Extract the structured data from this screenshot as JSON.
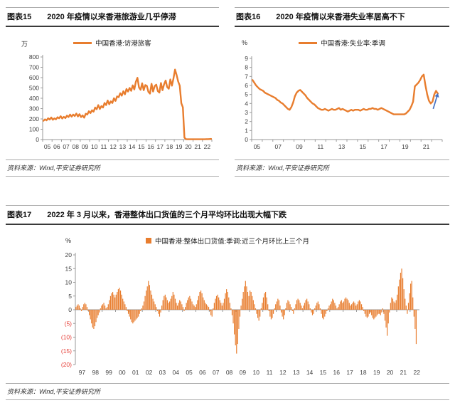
{
  "colors": {
    "series_orange": "#E87D2E",
    "negative_red": "#E6413A",
    "arrow_blue": "#4472C4",
    "axis_gray": "#9A9A9A",
    "tick_text": "#404040"
  },
  "figures": [
    {
      "code": "图表15",
      "title": "2020 年疫情以来香港旅游业几乎停滞",
      "source": "资料来源：Wind,平安证券研究所"
    },
    {
      "code": "图表16",
      "title": "2020 年疫情以来香港失业率居高不下",
      "source": "资料来源：Wind,平安证券研究所"
    },
    {
      "code": "图表17",
      "title": "2022 年 3 月以来，香港整体出口货值的三个月平均环比出现大幅下跌",
      "source": "资料来源：Wind,平安证券研究所"
    }
  ],
  "chart_data": [
    {
      "type": "line",
      "title": "中国香港访港旅客（月度）",
      "unit": "万",
      "legend": "中国香港:访港旅客",
      "color": "#E87D2E",
      "xlabel": "",
      "ylabel": "万",
      "xlim": [
        2005,
        2023
      ],
      "ylim": [
        0,
        800
      ],
      "grid": false,
      "legend_position": "top-center",
      "x_start": 2005,
      "points_per_year": 6,
      "yticks": [
        {
          "v": 0,
          "label": "0"
        },
        {
          "v": 100,
          "label": "100"
        },
        {
          "v": 200,
          "label": "200"
        },
        {
          "v": 300,
          "label": "300"
        },
        {
          "v": 400,
          "label": "400"
        },
        {
          "v": 500,
          "label": "500"
        },
        {
          "v": 600,
          "label": "600"
        },
        {
          "v": 700,
          "label": "700"
        },
        {
          "v": 800,
          "label": "800"
        }
      ],
      "xticks": {
        "start": 2005,
        "step": 1,
        "labels": [
          "05",
          "06",
          "07",
          "08",
          "09",
          "10",
          "11",
          "12",
          "13",
          "14",
          "15",
          "16",
          "17",
          "18",
          "19",
          "20",
          "21",
          "22"
        ]
      },
      "values": [
        182,
        196,
        186,
        206,
        194,
        214,
        192,
        205,
        196,
        216,
        206,
        226,
        204,
        220,
        208,
        232,
        218,
        242,
        222,
        242,
        228,
        252,
        224,
        246,
        218,
        234,
        212,
        250,
        242,
        274,
        256,
        284,
        270,
        310,
        294,
        334,
        296,
        324,
        310,
        354,
        334,
        378,
        342,
        370,
        354,
        400,
        374,
        418,
        410,
        448,
        425,
        468,
        438,
        490,
        465,
        500,
        472,
        525,
        485,
        560,
        598,
        505,
        482,
        545,
        478,
        528,
        520,
        462,
        445,
        540,
        465,
        518,
        532,
        470,
        455,
        548,
        478,
        535,
        572,
        508,
        492,
        582,
        522,
        592,
        678,
        625,
        562,
        522,
        352,
        312,
        18,
        4,
        3,
        3,
        3,
        3,
        3,
        3,
        3,
        3,
        3,
        3,
        3,
        3,
        4,
        4,
        5,
        6
      ]
    },
    {
      "type": "line",
      "title": "中国香港失业率（季调，%）",
      "unit": "%",
      "legend": "中国香港:失业率:季调",
      "color": "#E87D2E",
      "xlabel": "",
      "ylabel": "%",
      "xlim": [
        2005,
        2023
      ],
      "ylim": [
        0,
        9
      ],
      "grid": false,
      "legend_position": "top-center",
      "x_start": 2005,
      "points_per_year": 6,
      "yticks": [
        {
          "v": 0,
          "label": "0"
        },
        {
          "v": 1,
          "label": "1"
        },
        {
          "v": 2,
          "label": "2"
        },
        {
          "v": 3,
          "label": "3"
        },
        {
          "v": 4,
          "label": "4"
        },
        {
          "v": 5,
          "label": "5"
        },
        {
          "v": 6,
          "label": "6"
        },
        {
          "v": 7,
          "label": "7"
        },
        {
          "v": 8,
          "label": "8"
        },
        {
          "v": 9,
          "label": "9"
        }
      ],
      "xticks": {
        "start": 2005,
        "step": 2,
        "labels": [
          "05",
          "07",
          "09",
          "11",
          "13",
          "15",
          "17",
          "19",
          "21"
        ]
      },
      "annotation_arrow": {
        "x1": 2022.15,
        "y1": 3.4,
        "x2": 2022.6,
        "y2": 5.15,
        "color": "#4472C4"
      },
      "values": [
        6.6,
        6.3,
        6.0,
        5.8,
        5.6,
        5.5,
        5.4,
        5.2,
        5.1,
        5.0,
        4.9,
        4.8,
        4.7,
        4.6,
        4.4,
        4.3,
        4.1,
        4.0,
        3.8,
        3.6,
        3.4,
        3.3,
        3.6,
        4.1,
        4.8,
        5.2,
        5.4,
        5.5,
        5.3,
        5.1,
        4.9,
        4.6,
        4.4,
        4.2,
        4.0,
        3.9,
        3.7,
        3.5,
        3.4,
        3.3,
        3.3,
        3.4,
        3.3,
        3.2,
        3.3,
        3.4,
        3.3,
        3.3,
        3.4,
        3.5,
        3.3,
        3.4,
        3.3,
        3.2,
        3.1,
        3.2,
        3.3,
        3.2,
        3.3,
        3.3,
        3.3,
        3.2,
        3.3,
        3.4,
        3.3,
        3.3,
        3.4,
        3.4,
        3.5,
        3.4,
        3.4,
        3.3,
        3.4,
        3.5,
        3.4,
        3.3,
        3.2,
        3.1,
        3.0,
        2.9,
        2.8,
        2.8,
        2.8,
        2.8,
        2.8,
        2.8,
        2.8,
        2.9,
        3.1,
        3.3,
        3.7,
        4.2,
        5.9,
        6.1,
        6.3,
        6.6,
        7.0,
        7.2,
        6.0,
        5.0,
        4.3,
        4.0,
        4.2,
        5.0,
        5.4,
        5.1
      ]
    },
    {
      "type": "bar",
      "title": "中国香港整体出口货值（季调，近三个月环比上三个月，%）",
      "unit": "%",
      "legend": "中国香港:整体出口货值:季调:近三个月环比上三个月",
      "color": "#E87D2E",
      "xlabel": "",
      "ylabel": "%",
      "xlim": [
        1997,
        2022.7
      ],
      "ylim": [
        -20,
        20
      ],
      "grid": false,
      "legend_position": "top-center",
      "x_start": 1997,
      "points_per_year": 12,
      "yticks": [
        {
          "v": 20,
          "label": "20"
        },
        {
          "v": 15,
          "label": "15"
        },
        {
          "v": 10,
          "label": "10"
        },
        {
          "v": 5,
          "label": "5"
        },
        {
          "v": 0,
          "label": "0"
        },
        {
          "v": -5,
          "label": "(5)",
          "neg": true
        },
        {
          "v": -10,
          "label": "(10)",
          "neg": true
        },
        {
          "v": -15,
          "label": "(15)",
          "neg": true
        },
        {
          "v": -20,
          "label": "(20)",
          "neg": true
        }
      ],
      "xticks": {
        "start": 1997,
        "step": 1,
        "labels": [
          "97",
          "98",
          "99",
          "00",
          "01",
          "02",
          "03",
          "04",
          "05",
          "06",
          "07",
          "08",
          "09",
          "10",
          "11",
          "12",
          "13",
          "14",
          "15",
          "16",
          "17",
          "18",
          "19",
          "20",
          "21",
          "22"
        ]
      },
      "values": [
        1.0,
        1.5,
        2.0,
        1.5,
        0.5,
        -0.5,
        1.0,
        2.0,
        2.5,
        2.0,
        1.0,
        -0.5,
        -2.0,
        -3.5,
        -5.0,
        -6.5,
        -7.0,
        -6.0,
        -4.5,
        -3.0,
        -2.0,
        -1.0,
        0.5,
        1.5,
        2.0,
        2.5,
        1.5,
        0.5,
        1.0,
        2.0,
        3.5,
        5.0,
        6.0,
        6.5,
        5.5,
        4.5,
        5.5,
        6.5,
        7.5,
        8.0,
        7.0,
        5.5,
        4.0,
        3.0,
        2.0,
        1.0,
        -0.5,
        -1.5,
        -2.5,
        -3.5,
        -4.5,
        -5.0,
        -4.5,
        -4.0,
        -3.5,
        -3.0,
        -2.5,
        -1.5,
        -0.5,
        0.5,
        1.5,
        3.0,
        5.0,
        7.0,
        8.5,
        10.5,
        9.0,
        7.0,
        5.5,
        4.0,
        3.0,
        2.0,
        1.0,
        -0.5,
        -1.5,
        -2.5,
        -1.0,
        1.5,
        3.5,
        5.0,
        5.5,
        4.5,
        3.5,
        2.5,
        3.0,
        4.0,
        5.0,
        6.5,
        5.5,
        4.0,
        2.5,
        1.5,
        2.5,
        3.5,
        3.0,
        2.0,
        1.0,
        -0.5,
        1.0,
        2.5,
        3.5,
        4.5,
        5.0,
        4.0,
        3.0,
        2.0,
        1.5,
        1.0,
        2.0,
        3.5,
        5.0,
        6.5,
        7.0,
        6.0,
        4.5,
        3.5,
        2.5,
        2.0,
        1.5,
        1.0,
        -0.5,
        -2.0,
        -2.5,
        0.5,
        2.5,
        4.0,
        5.0,
        5.5,
        4.5,
        3.5,
        2.5,
        1.5,
        2.5,
        4.0,
        6.0,
        7.5,
        6.5,
        4.5,
        2.5,
        0.5,
        -2.0,
        -5.0,
        -9.0,
        -13.0,
        -16.0,
        -12.5,
        -7.0,
        -2.5,
        1.5,
        4.0,
        6.5,
        8.5,
        10.5,
        8.5,
        6.5,
        5.0,
        7.0,
        6.5,
        5.0,
        3.5,
        2.0,
        0.5,
        -1.5,
        -3.0,
        -4.0,
        -2.5,
        0.5,
        2.5,
        4.5,
        6.0,
        6.5,
        4.5,
        2.0,
        -0.5,
        -2.5,
        -3.5,
        -3.0,
        -1.5,
        0.5,
        2.0,
        3.0,
        4.0,
        3.5,
        1.5,
        -1.0,
        -2.5,
        -3.5,
        -2.0,
        0.5,
        2.5,
        3.5,
        3.0,
        2.0,
        1.0,
        -0.5,
        -1.5,
        0.5,
        2.0,
        3.5,
        4.0,
        3.5,
        2.5,
        1.5,
        0.5,
        1.5,
        2.5,
        3.5,
        4.0,
        3.0,
        2.0,
        0.5,
        -1.0,
        -2.0,
        -1.5,
        0.5,
        1.5,
        2.5,
        3.0,
        2.0,
        0.5,
        -1.5,
        -3.0,
        -3.5,
        -2.5,
        -1.5,
        -0.5,
        0.5,
        1.5,
        2.0,
        3.0,
        4.0,
        3.5,
        2.5,
        1.5,
        0.5,
        1.0,
        2.0,
        3.0,
        3.5,
        2.5,
        3.0,
        4.0,
        4.5,
        4.0,
        3.5,
        2.5,
        1.5,
        2.0,
        2.5,
        3.0,
        2.5,
        1.5,
        2.0,
        3.0,
        3.5,
        3.0,
        2.0,
        1.0,
        -0.5,
        -1.5,
        -2.5,
        -3.0,
        -2.5,
        -1.5,
        -1.0,
        -2.0,
        -3.0,
        -3.5,
        -3.0,
        -2.5,
        -2.0,
        -1.5,
        -1.5,
        -2.0,
        -1.0,
        0.5,
        -1.5,
        -4.0,
        -6.5,
        -9.5,
        -5.0,
        -1.0,
        2.5,
        4.5,
        4.0,
        3.0,
        2.5,
        3.5,
        5.5,
        8.5,
        11.0,
        13.5,
        15.0,
        11.5,
        7.5,
        4.0,
        1.5,
        -1.5,
        2.5,
        6.0,
        9.5,
        10.5,
        4.5,
        -2.5,
        -7.0,
        -12.5
      ]
    }
  ]
}
